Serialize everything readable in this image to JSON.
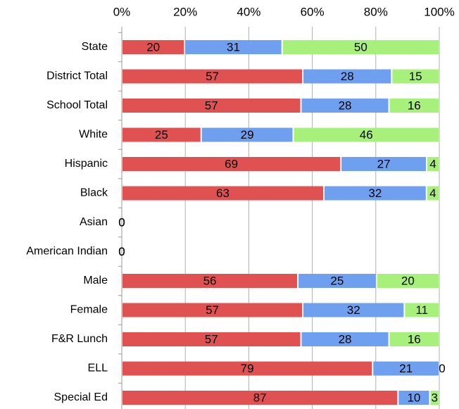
{
  "chart_data": {
    "type": "stacked_bar_percent",
    "orientation": "horizontal",
    "categories": [
      "State",
      "District Total",
      "School Total",
      "White",
      "Hispanic",
      "Black",
      "Asian",
      "American Indian",
      "Male",
      "Female",
      "F&R Lunch",
      "ELL",
      "Special Ed"
    ],
    "series": [
      {
        "color": "#e05252",
        "values": [
          20,
          57,
          57,
          25,
          69,
          63,
          0,
          0,
          56,
          57,
          57,
          79,
          87
        ]
      },
      {
        "color": "#6fa0f0",
        "values": [
          31,
          28,
          28,
          29,
          27,
          32,
          0,
          0,
          25,
          32,
          28,
          21,
          10
        ]
      },
      {
        "color": "#a8f07c",
        "values": [
          50,
          15,
          16,
          46,
          4,
          4,
          0,
          0,
          20,
          11,
          16,
          0,
          3
        ]
      }
    ],
    "xlim": [
      0,
      100
    ],
    "xticks": [
      {
        "value": 0,
        "label": "0%"
      },
      {
        "value": 20,
        "label": "20%"
      },
      {
        "value": 40,
        "label": "40%"
      },
      {
        "value": 60,
        "label": "60%"
      },
      {
        "value": 80,
        "label": "80%"
      },
      {
        "value": 100,
        "label": "100%"
      }
    ],
    "grid": true
  }
}
